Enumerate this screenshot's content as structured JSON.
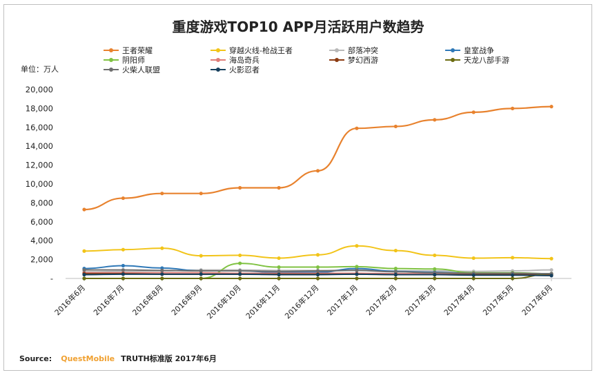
{
  "chart_data": {
    "type": "line",
    "title": "重度游戏TOP10 APP月活跃用户数趋势",
    "unit_label": "单位：万人",
    "ylim": [
      0,
      20000
    ],
    "y_ticks": [
      "20,000",
      "18,000",
      "16,000",
      "14,000",
      "12,000",
      "10,000",
      "8,000",
      "6,000",
      "4,000",
      "2,000",
      "-"
    ],
    "y_tick_values": [
      20000,
      18000,
      16000,
      14000,
      12000,
      10000,
      8000,
      6000,
      4000,
      2000,
      0
    ],
    "categories": [
      "2016年6月",
      "2016年7月",
      "2016年8月",
      "2016年9月",
      "2016年10月",
      "2016年11月",
      "2016年12月",
      "2017年1月",
      "2017年2月",
      "2017年3月",
      "2017年4月",
      "2017年5月",
      "2017年6月"
    ],
    "series": [
      {
        "name": "王者荣耀",
        "color": "#e8822e",
        "values": [
          7300,
          8500,
          9000,
          9000,
          9600,
          9600,
          11400,
          15900,
          16100,
          16800,
          17600,
          18000,
          18200
        ]
      },
      {
        "name": "穿越火线-枪战王者",
        "color": "#f2c418",
        "values": [
          2900,
          3050,
          3200,
          2400,
          2450,
          2150,
          2500,
          3450,
          2950,
          2450,
          2150,
          2200,
          2100
        ]
      },
      {
        "name": "部落冲突",
        "color": "#b8b8b8",
        "values": [
          700,
          750,
          800,
          900,
          900,
          850,
          850,
          900,
          800,
          800,
          750,
          800,
          900
        ]
      },
      {
        "name": "皇室战争",
        "color": "#2e78b7",
        "values": [
          1050,
          1350,
          1100,
          800,
          800,
          650,
          650,
          1050,
          750,
          650,
          550,
          500,
          400
        ]
      },
      {
        "name": "阴阳师",
        "color": "#7fc241",
        "values": [
          0,
          0,
          0,
          0,
          1600,
          1200,
          1200,
          1250,
          1050,
          1000,
          600,
          600,
          500
        ]
      },
      {
        "name": "海岛奇兵",
        "color": "#e07d78",
        "values": [
          600,
          600,
          600,
          600,
          550,
          550,
          550,
          550,
          500,
          500,
          500,
          500,
          450
        ]
      },
      {
        "name": "梦幻西游",
        "color": "#8b3a10",
        "values": [
          500,
          500,
          450,
          450,
          450,
          450,
          450,
          450,
          400,
          400,
          400,
          400,
          400
        ]
      },
      {
        "name": "天龙八部手游",
        "color": "#6b6b10",
        "values": [
          0,
          0,
          0,
          0,
          0,
          0,
          0,
          0,
          0,
          0,
          0,
          0,
          500
        ]
      },
      {
        "name": "火柴人联盟",
        "color": "#6e6e6e",
        "values": [
          900,
          900,
          850,
          800,
          800,
          750,
          800,
          850,
          700,
          600,
          550,
          550,
          500
        ]
      },
      {
        "name": "火影忍者",
        "color": "#163f5c",
        "values": [
          400,
          450,
          450,
          450,
          450,
          400,
          400,
          450,
          400,
          400,
          350,
          350,
          300
        ]
      }
    ]
  },
  "source": {
    "label": "Source:",
    "brand": "QuestMobile",
    "rest": "TRUTH标准版 2017年6月"
  }
}
